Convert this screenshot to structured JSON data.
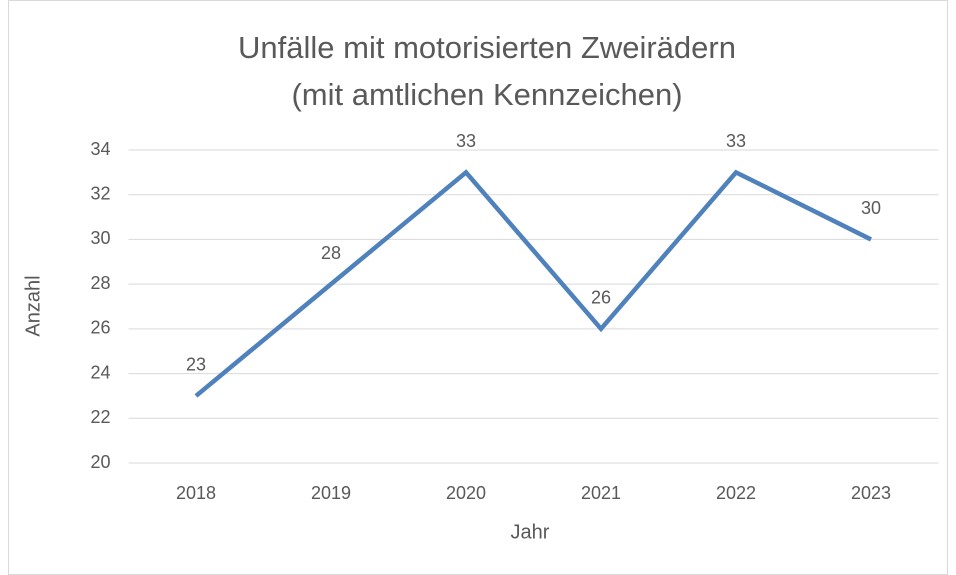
{
  "chart_data": {
    "type": "line",
    "title": [
      "Unfälle mit motorisierten Zweirädern",
      "(mit amtlichen Kennzeichen)"
    ],
    "x_label": "Jahr",
    "y_label": "Anzahl",
    "categories": [
      "2018",
      "2019",
      "2020",
      "2021",
      "2022",
      "2023"
    ],
    "values": [
      23,
      28,
      33,
      26,
      33,
      30
    ],
    "color": "#4f81bd",
    "ylim": [
      20,
      34
    ],
    "yticks": [
      20,
      22,
      24,
      26,
      28,
      30,
      32,
      34
    ],
    "grid": true,
    "data_labels": true
  }
}
